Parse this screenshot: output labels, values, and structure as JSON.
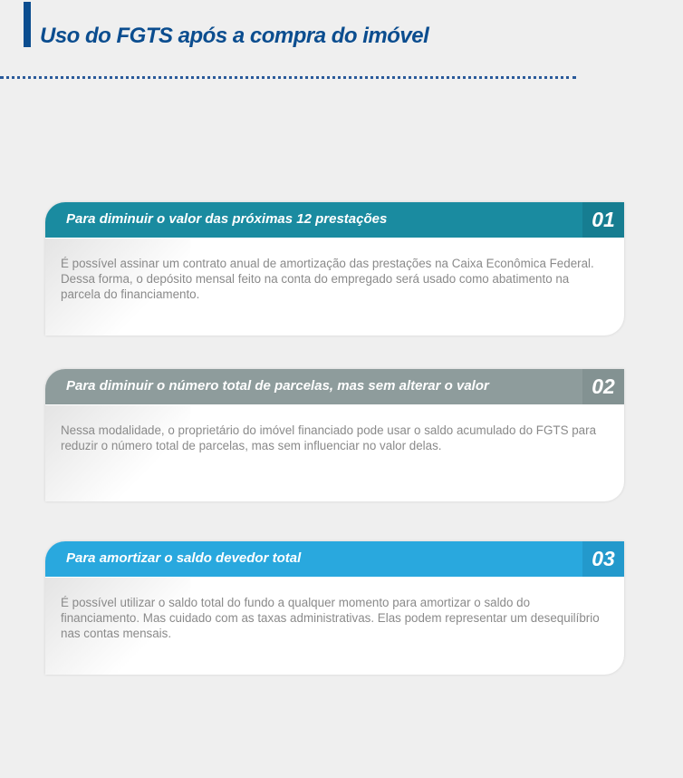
{
  "title": "Uso do FGTS após a compra do imóvel",
  "colors": {
    "title": "#0b4d8f",
    "card1": "#1a8ba0",
    "card2": "#8e9c9c",
    "card3": "#29a8de"
  },
  "cards": [
    {
      "number": "01",
      "heading": "Para diminuir o valor das próximas 12 prestações",
      "text": "É possível assinar um contrato anual de amortização das prestações na Caixa Econômica Federal. Dessa forma, o depósito mensal feito na conta do empregado será usado como abatimento na parcela do financiamento."
    },
    {
      "number": "02",
      "heading": "Para diminuir o número total de parcelas, mas sem alterar o valor",
      "text": "Nessa modalidade, o proprietário do imóvel financiado pode usar o saldo acumulado do FGTS para reduzir o número total de parcelas, mas sem influenciar no valor delas."
    },
    {
      "number": "03",
      "heading": "Para amortizar o saldo devedor total",
      "text": "É possível utilizar o saldo total do fundo a qualquer momento para amortizar o saldo do financiamento. Mas cuidado com as taxas administrativas. Elas podem representar um desequilíbrio nas contas mensais."
    }
  ]
}
